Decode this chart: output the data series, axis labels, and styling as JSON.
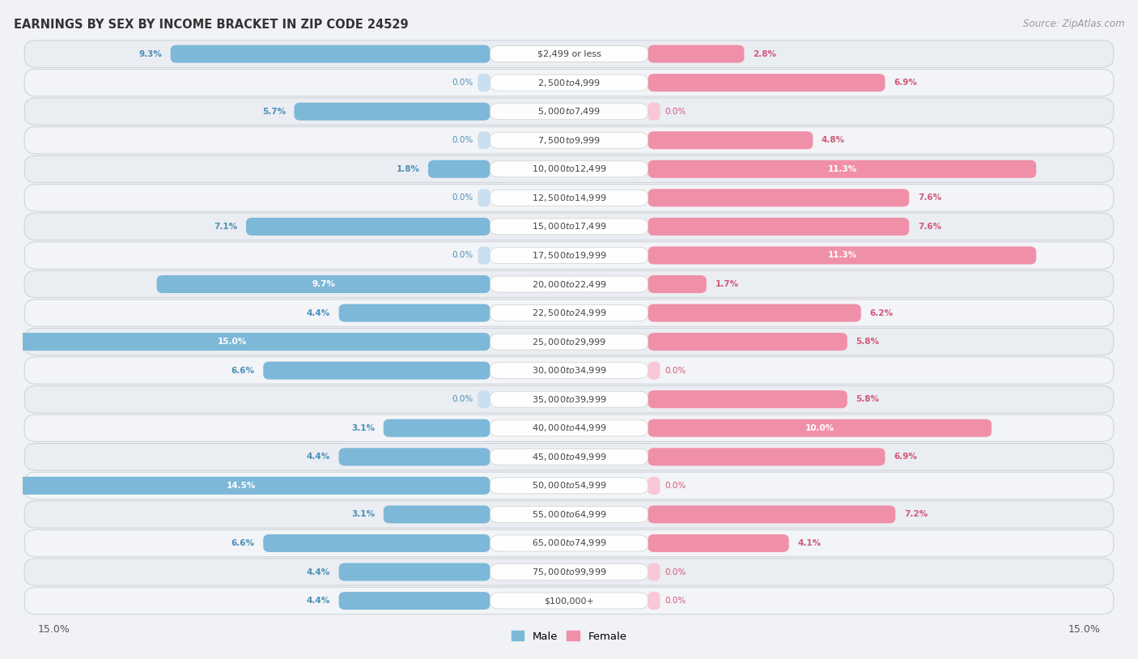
{
  "title": "EARNINGS BY SEX BY INCOME BRACKET IN ZIP CODE 24529",
  "source": "Source: ZipAtlas.com",
  "categories": [
    "$2,499 or less",
    "$2,500 to $4,999",
    "$5,000 to $7,499",
    "$7,500 to $9,999",
    "$10,000 to $12,499",
    "$12,500 to $14,999",
    "$15,000 to $17,499",
    "$17,500 to $19,999",
    "$20,000 to $22,499",
    "$22,500 to $24,999",
    "$25,000 to $29,999",
    "$30,000 to $34,999",
    "$35,000 to $39,999",
    "$40,000 to $44,999",
    "$45,000 to $49,999",
    "$50,000 to $54,999",
    "$55,000 to $64,999",
    "$65,000 to $74,999",
    "$75,000 to $99,999",
    "$100,000+"
  ],
  "male_values": [
    9.3,
    0.0,
    5.7,
    0.0,
    1.8,
    0.0,
    7.1,
    0.0,
    9.7,
    4.4,
    15.0,
    6.6,
    0.0,
    3.1,
    4.4,
    14.5,
    3.1,
    6.6,
    4.4,
    4.4
  ],
  "female_values": [
    2.8,
    6.9,
    0.0,
    4.8,
    11.3,
    7.6,
    7.6,
    11.3,
    1.7,
    6.2,
    5.8,
    0.0,
    5.8,
    10.0,
    6.9,
    0.0,
    7.2,
    4.1,
    0.0,
    0.0
  ],
  "male_color": "#7db8d8",
  "female_color": "#f090a8",
  "male_zero_color": "#c8dff0",
  "female_zero_color": "#f8c8d4",
  "male_label_color": "#4a8fb8",
  "female_label_color": "#d05878",
  "bg_row_even": "#eaedf2",
  "bg_row_odd": "#f2f4f7",
  "bg_outer": "#f0f2f5",
  "title_fontsize": 10.5,
  "source_fontsize": 8.5,
  "label_fontsize": 8.0,
  "value_fontsize": 7.5,
  "x_max": 15.0,
  "legend_male": "Male",
  "legend_female": "Female"
}
